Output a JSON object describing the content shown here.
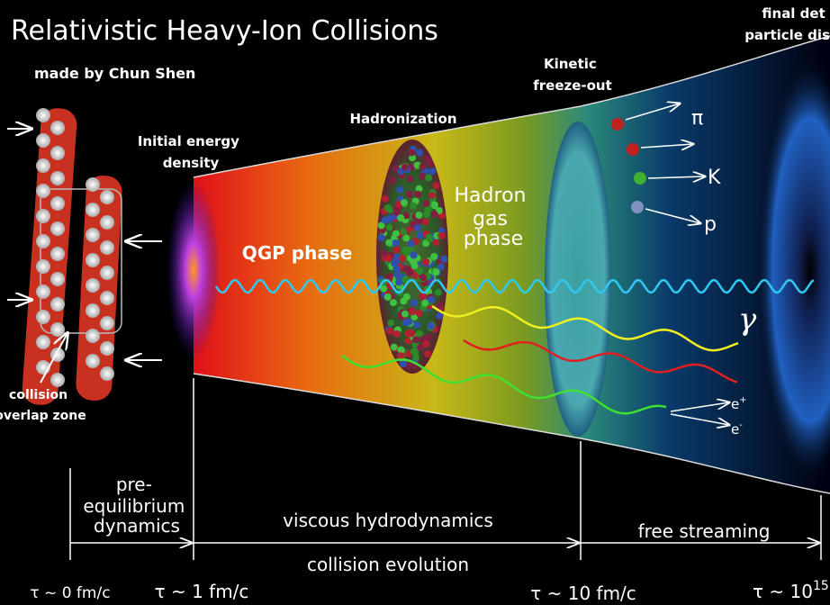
{
  "header": {
    "title": "Relativistic Heavy-Ion Collisions",
    "credit": "made by Chun Shen",
    "corner": [
      "final det",
      "particle dis"
    ]
  },
  "labels": {
    "initial": [
      "Initial energy",
      "density"
    ],
    "hadronization": "Hadronization",
    "freezeout": [
      "Kinetic",
      "freeze-out"
    ],
    "qgp": "QGP phase",
    "hadron_gas": [
      "Hadron",
      "gas",
      "phase"
    ],
    "overlap": [
      "collision",
      "overlap zone"
    ]
  },
  "particles": [
    "π",
    "K",
    "p"
  ],
  "photon": "γ",
  "leptons": [
    {
      "text": "e",
      "sup": "+"
    },
    {
      "text": "e",
      "sup": "-"
    }
  ],
  "stages": {
    "pre_equilibrium": [
      "pre-",
      "equilibrium",
      "dynamics"
    ],
    "hydro": "viscous hydrodynamics",
    "free": "free streaming",
    "evolution": "collision evolution"
  },
  "times": [
    {
      "text": "τ ~ 0 fm/c"
    },
    {
      "text": "τ ~ 1 fm/c"
    },
    {
      "text": "τ ~ 10 fm/c"
    },
    {
      "text": "τ ~ 10",
      "sup": "15"
    }
  ]
}
